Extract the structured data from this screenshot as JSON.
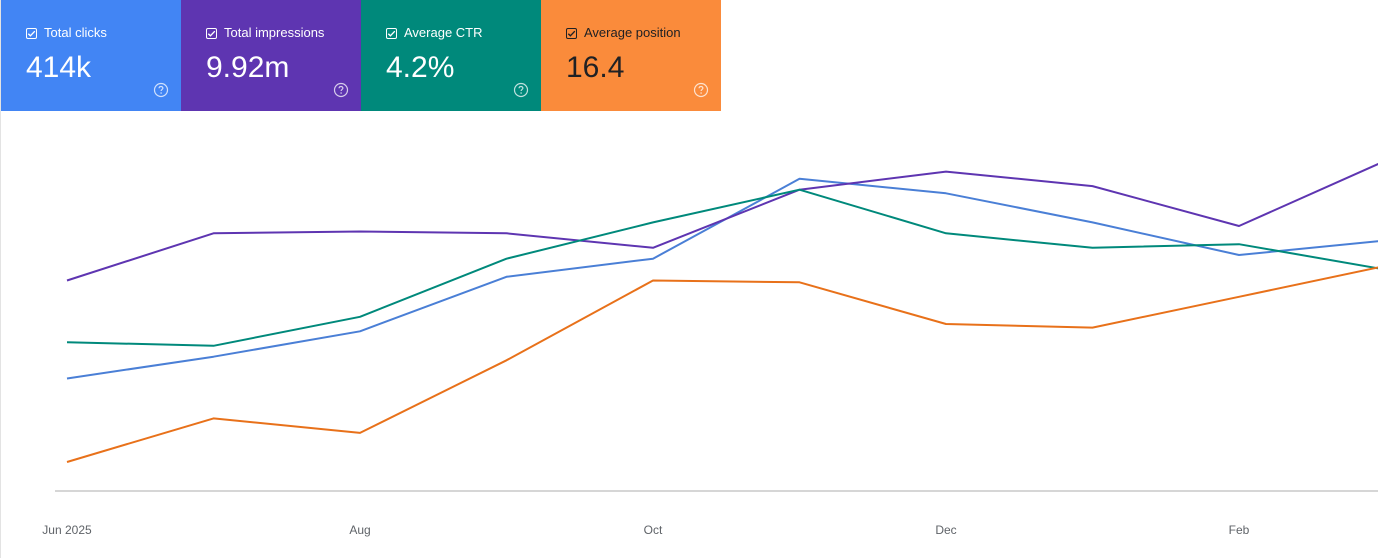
{
  "metrics": [
    {
      "label": "Total clicks",
      "value": "414k",
      "color": "#4285f4",
      "checked": true,
      "icon": "help-icon"
    },
    {
      "label": "Total impressions",
      "value": "9.92m",
      "color": "#5e35b1",
      "checked": true,
      "icon": "help-icon"
    },
    {
      "label": "Average CTR",
      "value": "4.2%",
      "color": "#00897b",
      "checked": true,
      "icon": "help-icon"
    },
    {
      "label": "Average position",
      "value": "16.4",
      "color": "#fa8b3b",
      "checked": true,
      "icon": "help-icon"
    }
  ],
  "chart_data": {
    "type": "line",
    "x": [
      "2025-06",
      "2025-07",
      "2025-08",
      "2025-09",
      "2025-10",
      "2025-11",
      "2025-12",
      "2026-01",
      "2026-02",
      "2026-03"
    ],
    "x_tick_labels": [
      "Jun 2025",
      "Aug",
      "Oct",
      "Dec",
      "Feb"
    ],
    "ylim": [
      0,
      100
    ],
    "grid": false,
    "series": [
      {
        "name": "Total clicks",
        "color": "#4a7fd6",
        "values": [
          31,
          37,
          44,
          59,
          64,
          86,
          82,
          74,
          65,
          69
        ]
      },
      {
        "name": "Total impressions",
        "color": "#5e35b1",
        "values": [
          58,
          71,
          71.5,
          71,
          67,
          83,
          88,
          84,
          73,
          91
        ]
      },
      {
        "name": "Average CTR",
        "color": "#00897b",
        "values": [
          41,
          40,
          48,
          64,
          74,
          83,
          71,
          67,
          68,
          61
        ]
      },
      {
        "name": "Average position",
        "color": "#e8711a",
        "values": [
          8,
          20,
          16,
          36,
          58,
          57.5,
          46,
          45,
          53.5,
          62
        ]
      }
    ]
  }
}
